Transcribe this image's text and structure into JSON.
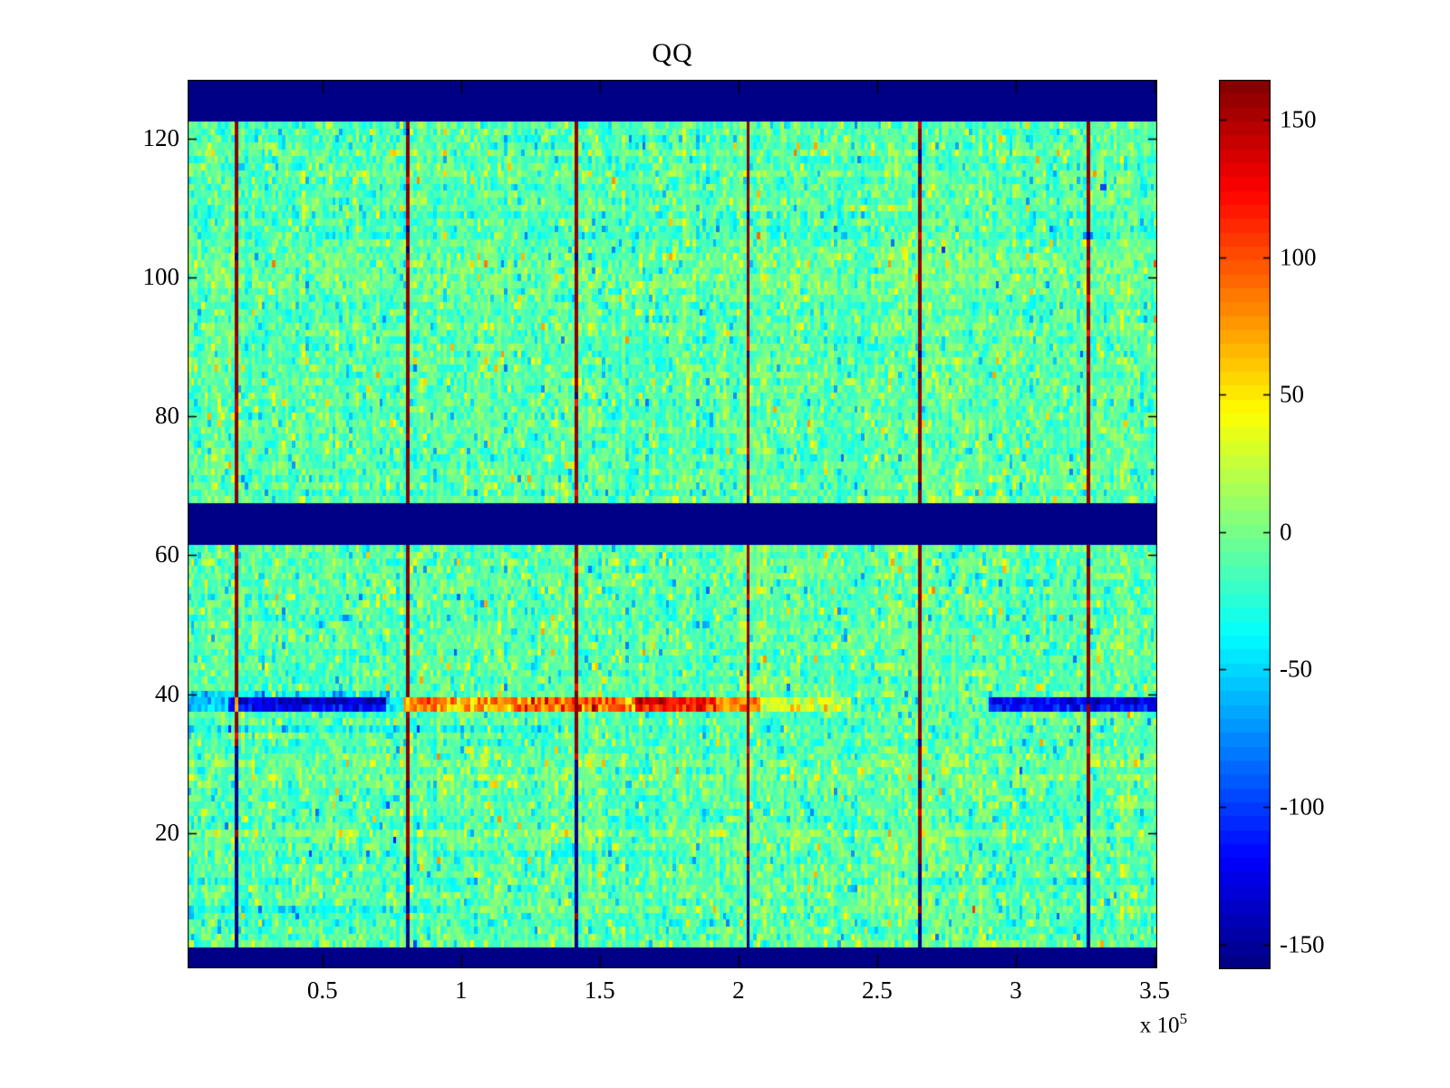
{
  "title": "QQ",
  "chart_data": {
    "type": "heatmap",
    "title": "QQ",
    "colormap": "jet",
    "color_levels": 64,
    "value_range": [
      -159,
      164.5
    ],
    "grid": {
      "cols": 288,
      "rows": 128
    },
    "x_axis": {
      "range": [
        1400,
        351000
      ],
      "ticks": [
        50000,
        100000,
        150000,
        200000,
        250000,
        300000,
        350000
      ],
      "tick_labels": [
        "0.5",
        "1",
        "1.5",
        "2",
        "2.5",
        "3",
        "3.5"
      ],
      "scale_text": "x 10",
      "scale_exponent": "5"
    },
    "y_axis": {
      "range": [
        0.5,
        128.5
      ],
      "ticks": [
        20,
        40,
        60,
        80,
        100,
        120
      ],
      "tick_labels": [
        "20",
        "40",
        "60",
        "80",
        "100",
        "120"
      ]
    },
    "colorbar": {
      "ticks": [
        150,
        100,
        50,
        0,
        -50,
        -100,
        -150
      ],
      "tick_labels": [
        "150",
        "100",
        "50",
        "0",
        "-50",
        "-100",
        "-150"
      ],
      "orientation": "vertical",
      "position": "right"
    },
    "solid_min_bands_rows": [
      [
        1,
        3
      ],
      [
        62,
        67
      ],
      [
        123,
        128
      ]
    ],
    "vertical_lines": [
      {
        "x_frac": 0.0486,
        "navy_below_row": 32
      },
      {
        "x_frac": 0.2252,
        "navy_below_row": 16
      },
      {
        "x_frac": 0.401,
        "navy_below_row": 30
      },
      {
        "x_frac": 0.5766,
        "navy_below_row": 21
      },
      {
        "x_frac": 0.7523,
        "navy_below_row": 15
      },
      {
        "x_frac": 0.928,
        "navy_below_row": 24
      }
    ],
    "anomaly": {
      "rows": [
        38,
        39
      ],
      "segments": [
        {
          "f0": 0.0,
          "f1": 0.042,
          "v": -55,
          "sd": 12
        },
        {
          "f0": 0.042,
          "f1": 0.205,
          "v": -132,
          "sd": 16
        },
        {
          "f0": 0.205,
          "f1": 0.222,
          "v": -45,
          "sd": 14
        },
        {
          "f0": 0.222,
          "f1": 0.344,
          "v": 82,
          "sd": 22
        },
        {
          "f0": 0.344,
          "f1": 0.463,
          "v": 98,
          "sd": 24
        },
        {
          "f0": 0.463,
          "f1": 0.545,
          "v": 128,
          "sd": 16
        },
        {
          "f0": 0.545,
          "f1": 0.592,
          "v": 80,
          "sd": 18
        },
        {
          "f0": 0.592,
          "f1": 0.683,
          "v": 28,
          "sd": 18
        },
        {
          "f0": 0.683,
          "f1": 0.826,
          "v": -12,
          "sd": 20
        },
        {
          "f0": 0.826,
          "f1": 1.0,
          "v": -126,
          "sd": 15
        }
      ]
    },
    "row_tint_segments": [
      {
        "row": 40,
        "f0": 0.0,
        "f1": 0.21,
        "bias": -36
      },
      {
        "row": 35,
        "f0": 0.0,
        "f1": 0.4,
        "bias": -13
      },
      {
        "row": 9,
        "f0": 0.0,
        "f1": 0.29,
        "bias": -28
      },
      {
        "row": 17,
        "f0": 0.05,
        "f1": 0.52,
        "bias": -14
      },
      {
        "row": 20,
        "f0": 0.0,
        "f1": 1.0,
        "bias": 6
      },
      {
        "row": 56,
        "f0": 0.6,
        "f1": 1.0,
        "bias": -11
      },
      {
        "row": 13,
        "f0": 0.3,
        "f1": 0.75,
        "bias": 8
      }
    ],
    "noise": {
      "seed": 1337,
      "mean": -10,
      "sd": 16,
      "col_bias_sd": 5,
      "row_bias_sd": 4,
      "tail_prob": 0.12,
      "tail_scale": 105
    },
    "layout": {
      "grid_on": false,
      "box_on": true,
      "tick_dir": "in"
    },
    "colors": {
      "saturation_min": "#000088",
      "saturation_max": "#880000",
      "axis": "#000000",
      "background": "#ffffff"
    }
  }
}
